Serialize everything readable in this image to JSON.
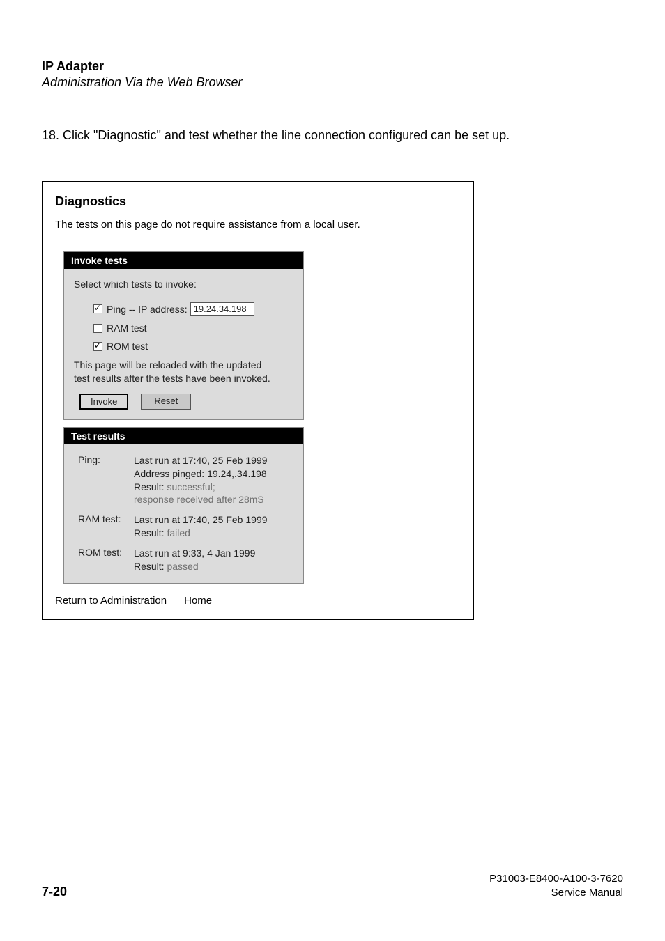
{
  "header": {
    "title": "IP Adapter",
    "subtitle": "Administration Via the Web Browser"
  },
  "instruction": "18.  Click \"Diagnostic\" and test whether the line connection configured can be set up.",
  "panel": {
    "title": "Diagnostics",
    "desc": "The tests on this page do not require assistance from a local user.",
    "invoke": {
      "header": "Invoke tests",
      "select_label": "Select which tests to invoke:",
      "ping_label": "Ping  -- IP address:",
      "ping_value": "19.24.34.198",
      "ram_label": "RAM test",
      "rom_label": "ROM test",
      "reload_text1": "This page will be reloaded with the updated",
      "reload_text2": "test results after the tests have been invoked.",
      "invoke_btn": "Invoke",
      "reset_btn": "Reset"
    },
    "results": {
      "header": "Test results",
      "ping": {
        "label": "Ping:",
        "line1": "Last run at 17:40, 25 Feb 1999",
        "line2": "Address pinged: 19.24,.34.198",
        "result_prefix": "Result:",
        "result_val": " successful;",
        "line4": "response received after 28mS"
      },
      "ram": {
        "label": "RAM test:",
        "line1": "Last run at 17:40, 25 Feb 1999",
        "result_prefix": "Result:",
        "result_val": " failed"
      },
      "rom": {
        "label": "ROM test:",
        "line1": "Last run at 9:33, 4 Jan 1999",
        "result_prefix": "Result:",
        "result_val": " passed"
      }
    },
    "return_prefix": "Return to ",
    "return_admin": "Administration",
    "return_home": "Home"
  },
  "footer": {
    "page_num": "7-20",
    "doc_id": "P31003-E8400-A100-3-7620",
    "doc_type": "Service Manual"
  }
}
